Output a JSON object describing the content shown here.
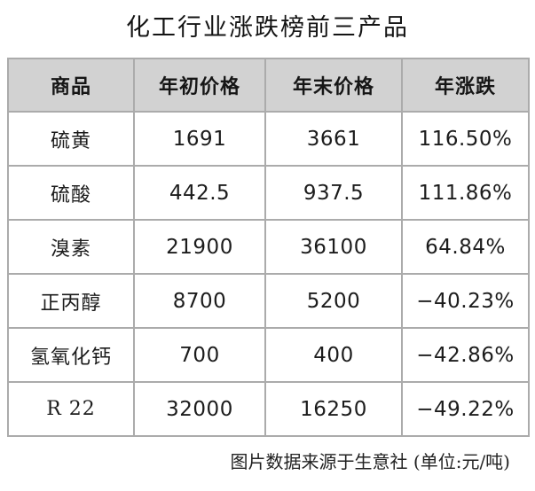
{
  "chart_data": {
    "type": "table",
    "title": "化工行业涨跌榜前三产品",
    "columns": [
      "商品",
      "年初价格",
      "年末价格",
      "年涨跌"
    ],
    "rows": [
      [
        "硫黄",
        "1691",
        "3661",
        "116.50%"
      ],
      [
        "硫酸",
        "442.5",
        "937.5",
        "111.86%"
      ],
      [
        "溴素",
        "21900",
        "36100",
        "64.84%"
      ],
      [
        "正丙醇",
        "8700",
        "5200",
        "−40.23%"
      ],
      [
        "氢氧化钙",
        "700",
        "400",
        "−42.86%"
      ],
      [
        "R 22",
        "32000",
        "16250",
        "−49.22%"
      ]
    ],
    "note": "图片数据来源于生意社 (单位:元/吨)",
    "unit": "元/吨",
    "source": "生意社"
  },
  "colors": {
    "header_bg": "#d2d2d2",
    "border_inner": "#ababab",
    "border_outer": "#9a9a9a",
    "text": "#1c1c1c",
    "page_bg": "#ffffff"
  }
}
